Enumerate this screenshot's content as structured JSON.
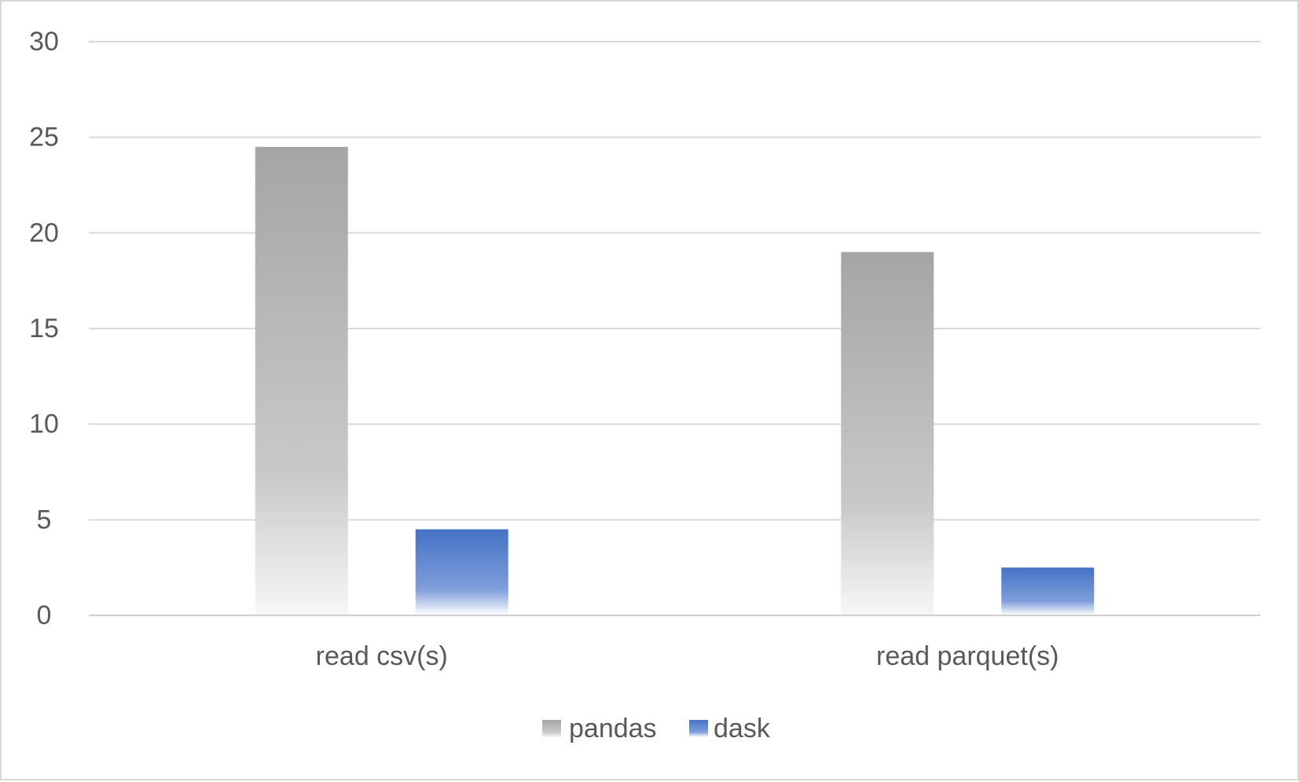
{
  "chart_data": {
    "type": "bar",
    "title": "",
    "xlabel": "",
    "ylabel": "",
    "categories": [
      "read csv(s)",
      "read parquet(s)"
    ],
    "series": [
      {
        "name": "pandas",
        "values": [
          24.5,
          19.0
        ],
        "color": "#a5a5a5"
      },
      {
        "name": "dask",
        "values": [
          4.5,
          2.5
        ],
        "color": "#4472c4"
      }
    ],
    "ylim": [
      0,
      30
    ],
    "yticks": [
      "0",
      "5",
      "10",
      "15",
      "20",
      "25",
      "30"
    ],
    "grid": true,
    "legend": "bottom-center"
  }
}
